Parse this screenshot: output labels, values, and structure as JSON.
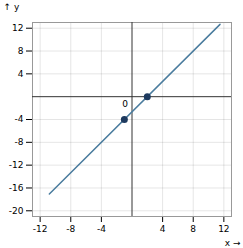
{
  "chart_data": {
    "type": "line",
    "xlabel": "x",
    "ylabel": "y",
    "xlim": [
      -13,
      13
    ],
    "ylim": [
      -21,
      13
    ],
    "xticks": [
      -12,
      -8,
      -4,
      4,
      8,
      12
    ],
    "yticks": [
      -20,
      -16,
      -12,
      -8,
      -4,
      4,
      8,
      12
    ],
    "grid": true,
    "series": [
      {
        "type": "line",
        "x": [
          -10.8,
          11.5
        ],
        "values": [
          -17.06666666624,
          12.66666666635
        ],
        "color": "#4a7c9e"
      },
      {
        "type": "scatter",
        "x": [
          -1,
          2
        ],
        "values": [
          -4,
          0
        ],
        "color": "#1e3a5f"
      }
    ],
    "annotations": [
      {
        "text": "0",
        "x": 0,
        "y": 0
      }
    ]
  }
}
